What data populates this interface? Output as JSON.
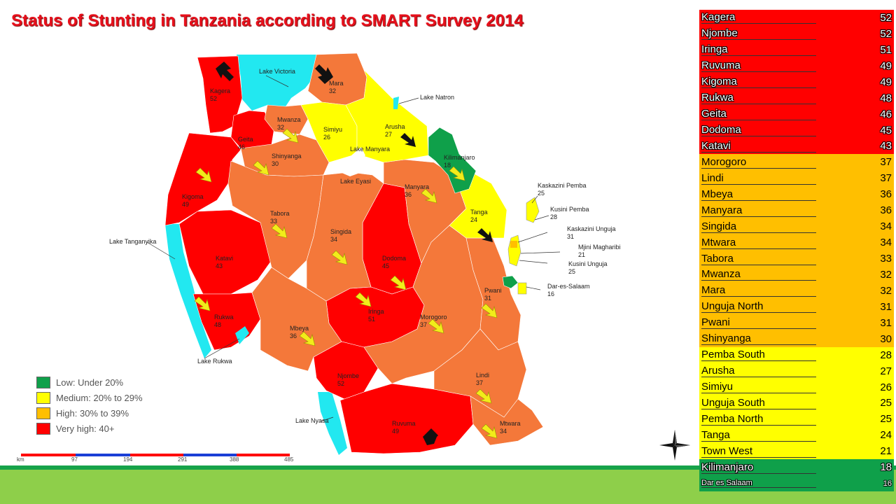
{
  "title": "Status of Stunting in Tanzania according to SMART Survey 2014",
  "colors": {
    "very_high": "#ff0000",
    "high_map": "#f4783a",
    "high_table": "#ffbf00",
    "medium": "#ffff00",
    "low": "#0fa04a",
    "water": "#22e8f0"
  },
  "legend": [
    {
      "label": "Low: Under 20%",
      "color": "#0fa04a"
    },
    {
      "label": "Medium: 20% to 29%",
      "color": "#ffff00"
    },
    {
      "label": "High: 30% to 39%",
      "color": "#ffbf00"
    },
    {
      "label": "Very high: 40+",
      "color": "#ff0000"
    }
  ],
  "scale_bar": {
    "labels": [
      "km",
      "97",
      "194",
      "291",
      "388",
      "485"
    ]
  },
  "map_labels": {
    "lakes": {
      "victoria": "Lake Victoria",
      "natron": "Lake Natron",
      "manyara": "Lake Manyara",
      "eyasi": "Lake Eyasi",
      "tanganyika": "Lake Tanganyika",
      "rukwa": "Lake Rukwa",
      "nyasa": "Lake Nyasa"
    },
    "regions": [
      {
        "name": "Kagera",
        "value": "52"
      },
      {
        "name": "Mara",
        "value": "32"
      },
      {
        "name": "Mwanza",
        "value": "32"
      },
      {
        "name": "Geita",
        "value": "46"
      },
      {
        "name": "Simiyu",
        "value": "26"
      },
      {
        "name": "Arusha",
        "value": "27"
      },
      {
        "name": "Kilimanjaro",
        "value": "18"
      },
      {
        "name": "Shinyanga",
        "value": "30"
      },
      {
        "name": "Kigoma",
        "value": "49"
      },
      {
        "name": "Tabora",
        "value": "33"
      },
      {
        "name": "Singida",
        "value": "34"
      },
      {
        "name": "Manyara",
        "value": "36"
      },
      {
        "name": "Tanga",
        "value": "24"
      },
      {
        "name": "Dodoma",
        "value": "45"
      },
      {
        "name": "Katavi",
        "value": "43"
      },
      {
        "name": "Rukwa",
        "value": "48"
      },
      {
        "name": "Iringa",
        "value": "51"
      },
      {
        "name": "Morogoro",
        "value": "37"
      },
      {
        "name": "Pwani",
        "value": "31"
      },
      {
        "name": "Mbeya",
        "value": "36"
      },
      {
        "name": "Njombe",
        "value": "52"
      },
      {
        "name": "Lindi",
        "value": "37"
      },
      {
        "name": "Ruvuma",
        "value": "49"
      },
      {
        "name": "Mtwara",
        "value": "34"
      }
    ],
    "islands": [
      {
        "name": "Kaskazini Pemba",
        "value": "25"
      },
      {
        "name": "Kusini Pemba",
        "value": "28"
      },
      {
        "name": "Kaskazini Unguja",
        "value": "31"
      },
      {
        "name": "Mjini Magharibi",
        "value": "21"
      },
      {
        "name": "Kusini Unguja",
        "value": "25"
      },
      {
        "name": "Dar-es-Salaam",
        "value": "16"
      }
    ]
  },
  "table": [
    {
      "region": "Kagera",
      "value": "52",
      "level": "vh"
    },
    {
      "region": "Njombe",
      "value": "52",
      "level": "vh"
    },
    {
      "region": "Iringa",
      "value": "51",
      "level": "vh"
    },
    {
      "region": "Ruvuma",
      "value": "49",
      "level": "vh"
    },
    {
      "region": "Kigoma",
      "value": "49",
      "level": "vh"
    },
    {
      "region": "Rukwa",
      "value": "48",
      "level": "vh"
    },
    {
      "region": "Geita",
      "value": "46",
      "level": "vh"
    },
    {
      "region": "Dodoma",
      "value": "45",
      "level": "vh"
    },
    {
      "region": "Katavi",
      "value": "43",
      "level": "vh"
    },
    {
      "region": "Morogoro",
      "value": "37",
      "level": "h"
    },
    {
      "region": "Lindi",
      "value": "37",
      "level": "h"
    },
    {
      "region": "Mbeya",
      "value": "36",
      "level": "h"
    },
    {
      "region": "Manyara",
      "value": "36",
      "level": "h"
    },
    {
      "region": "Singida",
      "value": "34",
      "level": "h"
    },
    {
      "region": "Mtwara",
      "value": "34",
      "level": "h"
    },
    {
      "region": "Tabora",
      "value": "33",
      "level": "h"
    },
    {
      "region": "Mwanza",
      "value": "32",
      "level": "h"
    },
    {
      "region": "Mara",
      "value": "32",
      "level": "h"
    },
    {
      "region": "Unguja North",
      "value": "31",
      "level": "h"
    },
    {
      "region": "Pwani",
      "value": "31",
      "level": "h"
    },
    {
      "region": "Shinyanga",
      "value": "30",
      "level": "h"
    },
    {
      "region": "Pemba South",
      "value": "28",
      "level": "m"
    },
    {
      "region": "Arusha",
      "value": "27",
      "level": "m"
    },
    {
      "region": "Simiyu",
      "value": "26",
      "level": "m"
    },
    {
      "region": "Unguja South",
      "value": "25",
      "level": "m"
    },
    {
      "region": "Pemba North",
      "value": "25",
      "level": "m"
    },
    {
      "region": "Tanga",
      "value": "24",
      "level": "m"
    },
    {
      "region": "Town West",
      "value": "21",
      "level": "m"
    },
    {
      "region": "Kilimanjaro",
      "value": "18",
      "level": "l"
    },
    {
      "region": "Dar es Salaam",
      "value": "16",
      "level": "l"
    }
  ]
}
